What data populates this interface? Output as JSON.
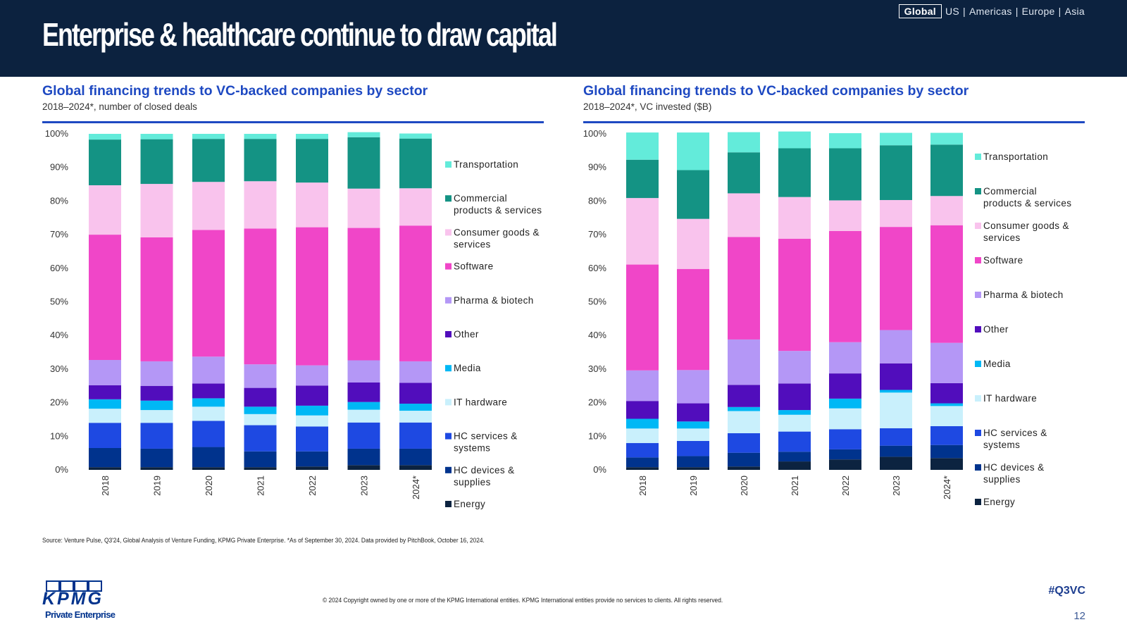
{
  "header": {
    "title": "Enterprise & healthcare continue to draw capital",
    "regions": [
      "Global",
      "US",
      "Americas",
      "Europe",
      "Asia"
    ],
    "active_region": "Global"
  },
  "colors": {
    "header_bg": "#0c223f",
    "accent": "#1e49c2",
    "Energy": "#0c2340",
    "HC devices & supplies": "#00338d",
    "HC services & systems": "#1e49e2",
    "IT hardware": "#c9f0fc",
    "Media": "#00b8f5",
    "Other": "#510dbc",
    "Pharma & biotech": "#b497f6",
    "Software": "#f046c8",
    "Consumer goods & services": "#f9c3ed",
    "Commercial products & services": "#149384",
    "Transportation": "#63ebda"
  },
  "chart_data": [
    {
      "type": "bar",
      "stacked": true,
      "title": "Global financing trends to VC-backed companies by sector",
      "subtitle": "2018–2024*, number of closed deals",
      "xlabel": "",
      "ylabel": "",
      "ylim": [
        0,
        100
      ],
      "yticks": [
        "0%",
        "10%",
        "20%",
        "30%",
        "40%",
        "50%",
        "60%",
        "70%",
        "80%",
        "90%",
        "100%"
      ],
      "categories": [
        "2018",
        "2019",
        "2020",
        "2021",
        "2022",
        "2023",
        "2024*"
      ],
      "legend_position": "right",
      "series": [
        {
          "name": "Energy",
          "values": [
            0.8,
            0.8,
            0.8,
            0.8,
            1.0,
            1.4,
            1.4
          ]
        },
        {
          "name": "HC devices & supplies",
          "values": [
            5.7,
            5.5,
            6.0,
            4.7,
            4.5,
            4.9,
            4.9
          ]
        },
        {
          "name": "HC services & systems",
          "values": [
            7.5,
            7.7,
            7.8,
            7.8,
            7.4,
            7.8,
            7.8
          ]
        },
        {
          "name": "IT hardware",
          "values": [
            4.2,
            3.8,
            4.2,
            3.3,
            3.3,
            3.8,
            3.5
          ]
        },
        {
          "name": "Media",
          "values": [
            2.8,
            2.8,
            2.5,
            2.2,
            2.9,
            2.3,
            2.1
          ]
        },
        {
          "name": "Other",
          "values": [
            4.2,
            4.4,
            4.4,
            5.6,
            6.0,
            5.8,
            6.2
          ]
        },
        {
          "name": "Pharma & biotech",
          "values": [
            7.5,
            7.3,
            8.0,
            7.0,
            6.0,
            6.6,
            6.4
          ]
        },
        {
          "name": "Software",
          "values": [
            37.3,
            36.9,
            37.7,
            40.4,
            41.1,
            39.4,
            40.4
          ]
        },
        {
          "name": "Consumer goods & services",
          "values": [
            14.7,
            15.9,
            14.3,
            14.1,
            13.3,
            11.7,
            11.1
          ]
        },
        {
          "name": "Commercial products & services",
          "values": [
            13.6,
            13.3,
            12.8,
            12.6,
            13.0,
            15.3,
            14.8
          ]
        },
        {
          "name": "Transportation",
          "values": [
            1.7,
            1.6,
            1.5,
            1.5,
            1.5,
            1.5,
            1.5
          ]
        }
      ],
      "legend": [
        "Transportation",
        "Commercial products & services",
        "Consumer goods & services",
        "Software",
        "Pharma & biotech",
        "Other",
        "Media",
        "IT hardware",
        "HC services & systems",
        "HC devices & supplies",
        "Energy"
      ],
      "legend_lines": [
        [
          "Transportation"
        ],
        [
          "Commercial",
          "products & services"
        ],
        [
          "Consumer goods &",
          "services"
        ],
        [
          "Software"
        ],
        [
          "Pharma & biotech"
        ],
        [
          "Other"
        ],
        [
          "Media"
        ],
        [
          "IT hardware"
        ],
        [
          "HC services &",
          "systems"
        ],
        [
          "HC devices &",
          "supplies"
        ],
        [
          "Energy"
        ]
      ]
    },
    {
      "type": "bar",
      "stacked": true,
      "title": "Global financing trends to VC-backed companies by sector",
      "subtitle": "2018–2024*, VC invested ($B)",
      "xlabel": "",
      "ylabel": "",
      "ylim": [
        0,
        100
      ],
      "yticks": [
        "0%",
        "10%",
        "20%",
        "30%",
        "40%",
        "50%",
        "60%",
        "70%",
        "80%",
        "90%",
        "100%"
      ],
      "categories": [
        "2018",
        "2019",
        "2020",
        "2021",
        "2022",
        "2023",
        "2024*"
      ],
      "legend_position": "right",
      "series": [
        {
          "name": "Energy",
          "values": [
            0.8,
            0.8,
            1.0,
            2.5,
            3.1,
            3.9,
            3.5
          ]
        },
        {
          "name": "HC devices & supplies",
          "values": [
            2.9,
            3.3,
            4.1,
            2.9,
            3.0,
            3.3,
            3.9
          ]
        },
        {
          "name": "HC services & systems",
          "values": [
            4.3,
            4.5,
            5.8,
            6.0,
            6.0,
            5.2,
            5.6
          ]
        },
        {
          "name": "IT hardware",
          "values": [
            4.3,
            3.7,
            6.6,
            5.0,
            6.2,
            10.6,
            6.0
          ]
        },
        {
          "name": "Media",
          "values": [
            2.9,
            2.1,
            1.2,
            1.4,
            2.9,
            0.8,
            0.8
          ]
        },
        {
          "name": "Other",
          "values": [
            5.3,
            5.4,
            6.6,
            7.9,
            7.5,
            7.9,
            6.0
          ]
        },
        {
          "name": "Pharma & biotech",
          "values": [
            9.1,
            9.9,
            13.5,
            9.7,
            9.3,
            9.9,
            12.0
          ]
        },
        {
          "name": "Software",
          "values": [
            31.5,
            30.1,
            30.5,
            33.4,
            33.1,
            30.7,
            35.0
          ]
        },
        {
          "name": "Consumer goods & services",
          "values": [
            19.8,
            14.9,
            13.0,
            12.4,
            9.1,
            8.0,
            8.7
          ]
        },
        {
          "name": "Commercial products & services",
          "values": [
            11.4,
            14.5,
            12.2,
            14.5,
            15.5,
            16.3,
            15.3
          ]
        },
        {
          "name": "Transportation",
          "values": [
            8.1,
            11.2,
            6.0,
            5.0,
            4.5,
            3.7,
            3.5
          ]
        }
      ],
      "legend": [
        "Transportation",
        "Commercial products & services",
        "Consumer goods & services",
        "Software",
        "Pharma & biotech",
        "Other",
        "Media",
        "IT hardware",
        "HC services & systems",
        "HC devices & supplies",
        "Energy"
      ],
      "legend_lines": [
        [
          "Transportation"
        ],
        [
          "Commercial",
          "products & services"
        ],
        [
          "Consumer goods &",
          "services"
        ],
        [
          "Software"
        ],
        [
          "Pharma & biotech"
        ],
        [
          "Other"
        ],
        [
          "Media"
        ],
        [
          "IT hardware"
        ],
        [
          "HC services &",
          "systems"
        ],
        [
          "HC devices &",
          "supplies"
        ],
        [
          "Energy"
        ]
      ]
    }
  ],
  "footer": {
    "source": "Source: Venture Pulse, Q3'24, Global Analysis of Venture Funding, KPMG Private Enterprise. *As of September 30, 2024. Data provided by PitchBook, October 16, 2024.",
    "copyright": "© 2024 Copyright owned by one or more of the KPMG International entities. KPMG International entities provide no services to clients. All rights reserved.",
    "logo_text": "KPMG",
    "logo_sub": "Private Enterprise",
    "hashtag": "#Q3VC",
    "page_number": "12"
  }
}
